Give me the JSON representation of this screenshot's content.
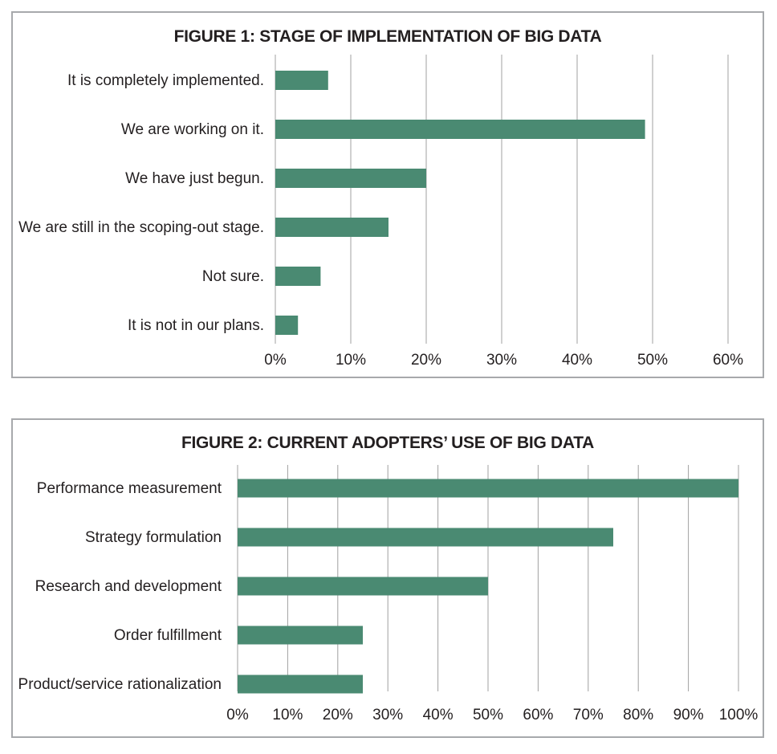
{
  "colors": {
    "bar": "#4a8a72",
    "grid": "#a0a0a0",
    "border": "#a7a9ac",
    "text": "#231f20"
  },
  "chart_data": [
    {
      "type": "bar",
      "orientation": "horizontal",
      "title": "FIGURE 1: STAGE OF IMPLEMENTATION OF BIG DATA",
      "categories": [
        "It is completely implemented.",
        "We are working on it.",
        "We have just begun.",
        "We are still in the scoping-out stage.",
        "Not sure.",
        "It is not in our plans."
      ],
      "values": [
        7,
        49,
        20,
        15,
        6,
        3
      ],
      "xlim": [
        0,
        60
      ],
      "xticks": [
        "0%",
        "10%",
        "20%",
        "30%",
        "40%",
        "50%",
        "60%"
      ],
      "grid": "vertical",
      "legend": "none"
    },
    {
      "type": "bar",
      "orientation": "horizontal",
      "title": "FIGURE 2: CURRENT ADOPTERS’ USE OF BIG DATA",
      "categories": [
        "Performance measurement",
        "Strategy formulation",
        "Research and development",
        "Order fulfillment",
        "Product/service rationalization"
      ],
      "values": [
        100,
        75,
        50,
        25,
        25
      ],
      "xlim": [
        0,
        100
      ],
      "xticks": [
        "0%",
        "10%",
        "20%",
        "30%",
        "40%",
        "50%",
        "60%",
        "70%",
        "80%",
        "90%",
        "100%"
      ],
      "grid": "vertical",
      "legend": "none"
    }
  ]
}
